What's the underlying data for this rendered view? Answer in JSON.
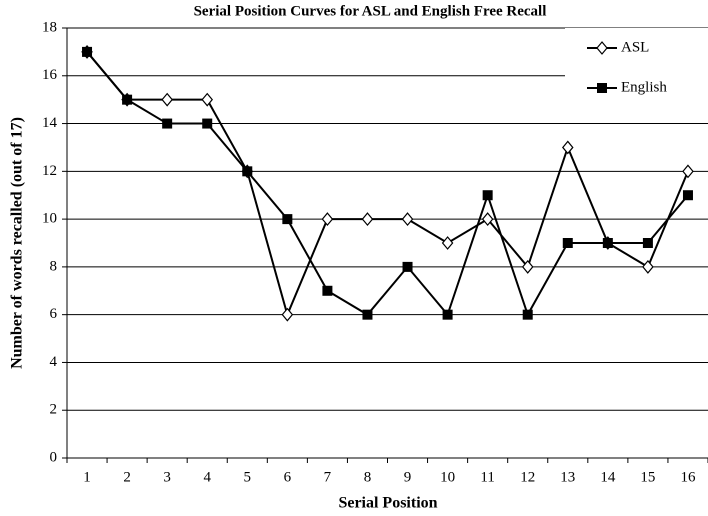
{
  "chart_data": {
    "type": "line",
    "title": "Serial Position Curves for ASL and English Free Recall",
    "x_label": "Serial Position",
    "y_label": "Number of words recalled (out of 17)",
    "categories": [
      "1",
      "2",
      "3",
      "4",
      "5",
      "6",
      "7",
      "8",
      "9",
      "10",
      "11",
      "12",
      "13",
      "14",
      "15",
      "16"
    ],
    "series": [
      {
        "name": "ASL",
        "color": "#000000",
        "marker": "diamond",
        "values": [
          17,
          15,
          15,
          15,
          12,
          6,
          10,
          10,
          10,
          9,
          10,
          8,
          13,
          9,
          8,
          12
        ]
      },
      {
        "name": "English",
        "color": "#000000",
        "marker": "square",
        "values": [
          17,
          15,
          14,
          14,
          12,
          10,
          7,
          6,
          8,
          6,
          11,
          6,
          9,
          9,
          9,
          11
        ]
      }
    ],
    "ylim": [
      0,
      18
    ],
    "yticks": [
      0,
      2,
      4,
      6,
      8,
      10,
      12,
      14,
      16,
      18
    ],
    "grid": true,
    "legend": "upper right"
  }
}
